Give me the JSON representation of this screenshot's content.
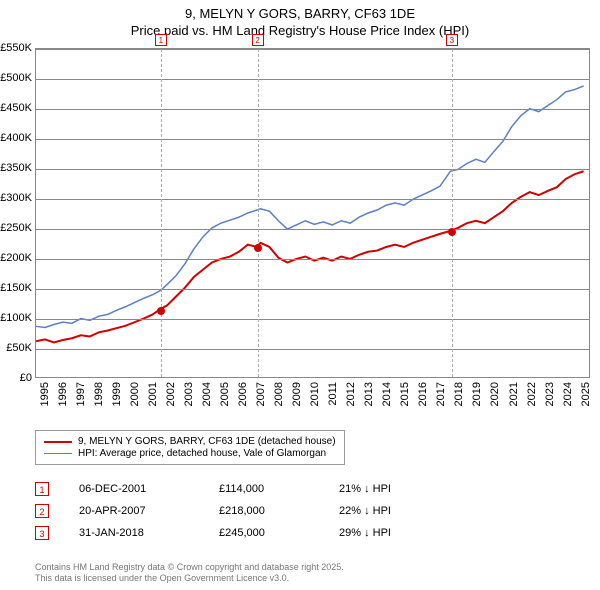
{
  "chart": {
    "type": "line",
    "title_line1": "9, MELYN Y GORS, BARRY, CF63 1DE",
    "title_line2": "Price paid vs. HM Land Registry's House Price Index (HPI)",
    "title_fontsize": 13,
    "background_color": "#ffffff",
    "grid_color": "#888888",
    "axis_label_fontsize": 11,
    "xlim": [
      1995,
      2025.8
    ],
    "years": [
      1995,
      1996,
      1997,
      1998,
      1999,
      2000,
      2001,
      2002,
      2003,
      2004,
      2005,
      2006,
      2007,
      2008,
      2009,
      2010,
      2011,
      2012,
      2013,
      2014,
      2015,
      2016,
      2017,
      2018,
      2019,
      2020,
      2021,
      2022,
      2023,
      2024,
      2025
    ],
    "ylim": [
      0,
      550000
    ],
    "ytick_step": 50000,
    "yticks": [
      "£0",
      "£50K",
      "£100K",
      "£150K",
      "£200K",
      "£250K",
      "£300K",
      "£350K",
      "£400K",
      "£450K",
      "£500K",
      "£550K"
    ],
    "series": [
      {
        "name": "9, MELYN Y GORS, BARRY, CF63 1DE (detached house)",
        "color": "#d00000",
        "line_width": 2,
        "data": [
          [
            1995,
            60000
          ],
          [
            1995.5,
            63000
          ],
          [
            1996,
            58000
          ],
          [
            1996.5,
            62000
          ],
          [
            1997,
            65000
          ],
          [
            1997.5,
            70000
          ],
          [
            1998,
            68000
          ],
          [
            1998.5,
            75000
          ],
          [
            1999,
            78000
          ],
          [
            1999.5,
            82000
          ],
          [
            2000,
            86000
          ],
          [
            2000.5,
            92000
          ],
          [
            2001,
            98000
          ],
          [
            2001.5,
            105000
          ],
          [
            2001.93,
            114000
          ],
          [
            2002.3,
            120000
          ],
          [
            2002.8,
            135000
          ],
          [
            2003.3,
            150000
          ],
          [
            2003.8,
            168000
          ],
          [
            2004.3,
            180000
          ],
          [
            2004.8,
            192000
          ],
          [
            2005.3,
            198000
          ],
          [
            2005.8,
            202000
          ],
          [
            2006.3,
            210000
          ],
          [
            2006.8,
            222000
          ],
          [
            2007.3,
            218000
          ],
          [
            2007.5,
            225000
          ],
          [
            2008,
            218000
          ],
          [
            2008.5,
            200000
          ],
          [
            2009,
            192000
          ],
          [
            2009.5,
            198000
          ],
          [
            2010,
            202000
          ],
          [
            2010.5,
            195000
          ],
          [
            2011,
            200000
          ],
          [
            2011.5,
            195000
          ],
          [
            2012,
            202000
          ],
          [
            2012.5,
            198000
          ],
          [
            2013,
            205000
          ],
          [
            2013.5,
            210000
          ],
          [
            2014,
            212000
          ],
          [
            2014.5,
            218000
          ],
          [
            2015,
            222000
          ],
          [
            2015.5,
            218000
          ],
          [
            2016,
            225000
          ],
          [
            2016.5,
            230000
          ],
          [
            2017,
            235000
          ],
          [
            2017.5,
            240000
          ],
          [
            2018.08,
            245000
          ],
          [
            2018.5,
            250000
          ],
          [
            2019,
            258000
          ],
          [
            2019.5,
            262000
          ],
          [
            2020,
            258000
          ],
          [
            2020.5,
            268000
          ],
          [
            2021,
            278000
          ],
          [
            2021.5,
            292000
          ],
          [
            2022,
            302000
          ],
          [
            2022.5,
            310000
          ],
          [
            2023,
            305000
          ],
          [
            2023.5,
            312000
          ],
          [
            2024,
            318000
          ],
          [
            2024.5,
            332000
          ],
          [
            2025,
            340000
          ],
          [
            2025.5,
            345000
          ]
        ]
      },
      {
        "name": "HPI: Average price, detached house, Vale of Glamorgan",
        "color": "#5a7fc4",
        "line_width": 1.5,
        "data": [
          [
            1995,
            85000
          ],
          [
            1995.5,
            83000
          ],
          [
            1996,
            88000
          ],
          [
            1996.5,
            92000
          ],
          [
            1997,
            90000
          ],
          [
            1997.5,
            98000
          ],
          [
            1998,
            95000
          ],
          [
            1998.5,
            102000
          ],
          [
            1999,
            105000
          ],
          [
            1999.5,
            112000
          ],
          [
            2000,
            118000
          ],
          [
            2000.5,
            125000
          ],
          [
            2001,
            132000
          ],
          [
            2001.5,
            138000
          ],
          [
            2001.93,
            145000
          ],
          [
            2002.3,
            155000
          ],
          [
            2002.8,
            170000
          ],
          [
            2003.3,
            190000
          ],
          [
            2003.8,
            215000
          ],
          [
            2004.3,
            235000
          ],
          [
            2004.8,
            250000
          ],
          [
            2005.3,
            258000
          ],
          [
            2005.8,
            263000
          ],
          [
            2006.3,
            268000
          ],
          [
            2006.8,
            275000
          ],
          [
            2007.3,
            280000
          ],
          [
            2007.5,
            282000
          ],
          [
            2008,
            278000
          ],
          [
            2008.5,
            262000
          ],
          [
            2009,
            248000
          ],
          [
            2009.5,
            255000
          ],
          [
            2010,
            262000
          ],
          [
            2010.5,
            256000
          ],
          [
            2011,
            260000
          ],
          [
            2011.5,
            255000
          ],
          [
            2012,
            262000
          ],
          [
            2012.5,
            258000
          ],
          [
            2013,
            268000
          ],
          [
            2013.5,
            275000
          ],
          [
            2014,
            280000
          ],
          [
            2014.5,
            288000
          ],
          [
            2015,
            292000
          ],
          [
            2015.5,
            288000
          ],
          [
            2016,
            298000
          ],
          [
            2016.5,
            305000
          ],
          [
            2017,
            312000
          ],
          [
            2017.5,
            320000
          ],
          [
            2018.08,
            345000
          ],
          [
            2018.5,
            348000
          ],
          [
            2019,
            358000
          ],
          [
            2019.5,
            365000
          ],
          [
            2020,
            360000
          ],
          [
            2020.5,
            378000
          ],
          [
            2021,
            395000
          ],
          [
            2021.5,
            420000
          ],
          [
            2022,
            438000
          ],
          [
            2022.5,
            450000
          ],
          [
            2023,
            445000
          ],
          [
            2023.5,
            455000
          ],
          [
            2024,
            465000
          ],
          [
            2024.5,
            478000
          ],
          [
            2025,
            482000
          ],
          [
            2025.5,
            488000
          ]
        ]
      }
    ],
    "markers": [
      {
        "n": "1",
        "x": 2001.93,
        "date": "06-DEC-2001",
        "price": "£114,000",
        "pct": "21% ↓ HPI"
      },
      {
        "n": "2",
        "x": 2007.3,
        "date": "20-APR-2007",
        "price": "£218,000",
        "pct": "22% ↓ HPI"
      },
      {
        "n": "3",
        "x": 2018.08,
        "date": "31-JAN-2018",
        "price": "£245,000",
        "pct": "29% ↓ HPI"
      }
    ],
    "marker_color": "#d00000",
    "marker_dashed_color": "#aaaaaa"
  },
  "footer": {
    "line1": "Contains HM Land Registry data © Crown copyright and database right 2025.",
    "line2": "This data is licensed under the Open Government Licence v3.0."
  }
}
